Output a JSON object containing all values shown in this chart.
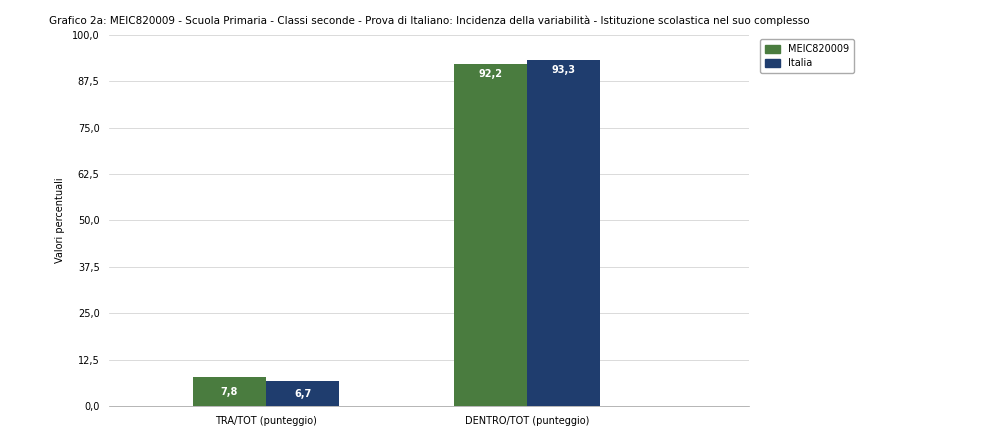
{
  "title": "Grafico 2a: MEIC820009 - Scuola Primaria - Classi seconde - Prova di Italiano: Incidenza della variabilità - Istituzione scolastica nel suo complesso",
  "categories": [
    "TRA/TOT (punteggio)",
    "DENTRO/TOT (punteggio)"
  ],
  "meic_values": [
    7.8,
    92.2
  ],
  "italia_values": [
    6.7,
    93.3
  ],
  "meic_color": "#4a7c3f",
  "italia_color": "#1f3d6e",
  "ylabel": "Valori percentuali",
  "ylim": [
    0,
    100
  ],
  "yticks": [
    0.0,
    12.5,
    25.0,
    37.5,
    50.0,
    62.5,
    75.0,
    87.5,
    100.0
  ],
  "ytick_labels": [
    "0,0",
    "12,5",
    "25,0",
    "37,5",
    "50,0",
    "62,5",
    "75,0",
    "87,5",
    "100,0"
  ],
  "legend_labels": [
    "MEIC820009",
    "Italia"
  ],
  "bar_width": 0.28,
  "label_fontsize": 7,
  "title_fontsize": 7.5,
  "axis_fontsize": 7,
  "legend_fontsize": 7,
  "background_color": "#ffffff",
  "grid_color": "#cccccc"
}
